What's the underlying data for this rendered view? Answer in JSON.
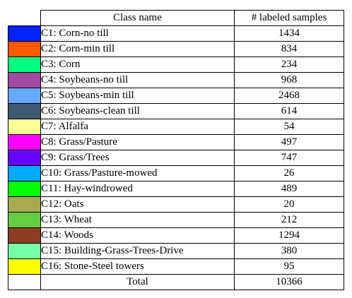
{
  "header": {
    "class_name": "Class name",
    "labeled_samples": "# labeled samples"
  },
  "rows": [
    {
      "color": "#0022ff",
      "name": "C1: Corn-no till",
      "count": "1434"
    },
    {
      "color": "#ff5a00",
      "name": "C2: Corn-min till",
      "count": "834"
    },
    {
      "color": "#00ff80",
      "name": "C3: Corn",
      "count": "234"
    },
    {
      "color": "#9e4aa0",
      "name": "C4: Soybeans-no till",
      "count": "968"
    },
    {
      "color": "#66aaff",
      "name": "C5: Soybeans-min till",
      "count": "2468"
    },
    {
      "color": "#3e5a73",
      "name": "C6: Soybeans-clean till",
      "count": "614"
    },
    {
      "color": "#ffff99",
      "name": "C7: Alfalfa",
      "count": "54"
    },
    {
      "color": "#ff00ff",
      "name": "C8: Grass/Pasture",
      "count": "497"
    },
    {
      "color": "#6600ff",
      "name": "C9: Grass/Trees",
      "count": "747"
    },
    {
      "color": "#00aaff",
      "name": "C10: Grass/Pasture-mowed",
      "count": "26"
    },
    {
      "color": "#00ff00",
      "name": "C11: Hay-windrowed",
      "count": "489"
    },
    {
      "color": "#aaaa55",
      "name": "C12: Oats",
      "count": "20"
    },
    {
      "color": "#66cc44",
      "name": "C13: Wheat",
      "count": "212"
    },
    {
      "color": "#8b3e22",
      "name": "C14: Woods",
      "count": "1294"
    },
    {
      "color": "#77ffaa",
      "name": "C15: Building-Grass-Trees-Drive",
      "count": "380"
    },
    {
      "color": "#ffff00",
      "name": "C16: Stone-Steel towers",
      "count": "95"
    }
  ],
  "total": {
    "label": "Total",
    "count": "10366"
  }
}
